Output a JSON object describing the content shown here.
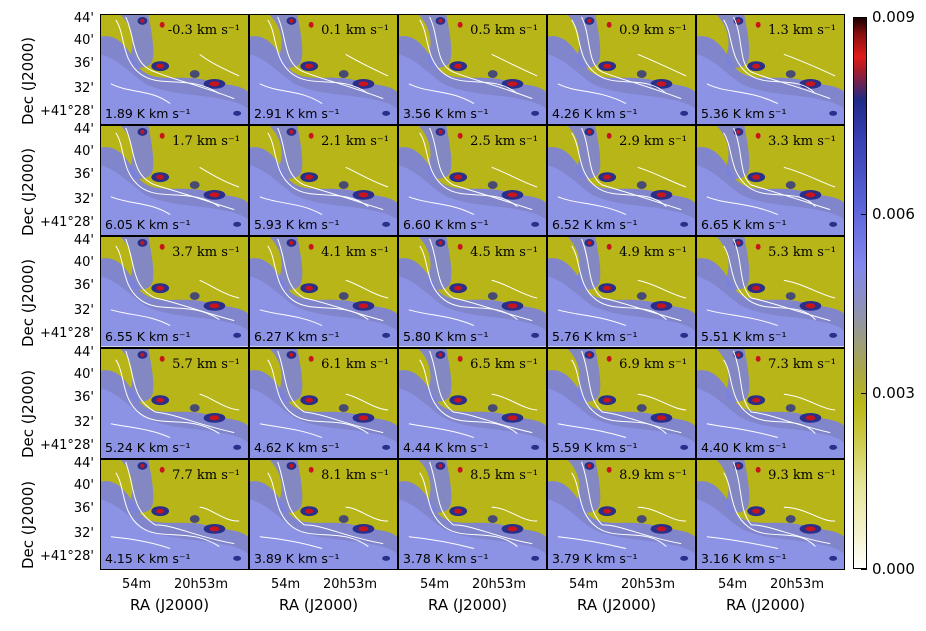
{
  "panels": [
    {
      "velocity": "-0.3 km s⁻¹",
      "integrated": "1.89 K km s⁻¹"
    },
    {
      "velocity": "0.1 km s⁻¹",
      "integrated": "2.91 K km s⁻¹"
    },
    {
      "velocity": "0.5 km s⁻¹",
      "integrated": "3.56 K km s⁻¹"
    },
    {
      "velocity": "0.9 km s⁻¹",
      "integrated": "4.26 K km s⁻¹"
    },
    {
      "velocity": "1.3 km s⁻¹",
      "integrated": "5.36 K km s⁻¹"
    },
    {
      "velocity": "1.7 km s⁻¹",
      "integrated": "6.05 K km s⁻¹"
    },
    {
      "velocity": "2.1 km s⁻¹",
      "integrated": "5.93 K km s⁻¹"
    },
    {
      "velocity": "2.5 km s⁻¹",
      "integrated": "6.60 K km s⁻¹"
    },
    {
      "velocity": "2.9 km s⁻¹",
      "integrated": "6.52 K km s⁻¹"
    },
    {
      "velocity": "3.3 km s⁻¹",
      "integrated": "6.65 K km s⁻¹"
    },
    {
      "velocity": "3.7 km s⁻¹",
      "integrated": "6.55 K km s⁻¹"
    },
    {
      "velocity": "4.1 km s⁻¹",
      "integrated": "6.27 K km s⁻¹"
    },
    {
      "velocity": "4.5 km s⁻¹",
      "integrated": "5.80 K km s⁻¹"
    },
    {
      "velocity": "4.9 km s⁻¹",
      "integrated": "5.76 K km s⁻¹"
    },
    {
      "velocity": "5.3 km s⁻¹",
      "integrated": "5.51 K km s⁻¹"
    },
    {
      "velocity": "5.7 km s⁻¹",
      "integrated": "5.24 K km s⁻¹"
    },
    {
      "velocity": "6.1 km s⁻¹",
      "integrated": "4.62 K km s⁻¹"
    },
    {
      "velocity": "6.5 km s⁻¹",
      "integrated": "4.44 K km s⁻¹"
    },
    {
      "velocity": "6.9 km s⁻¹",
      "integrated": "5.59 K km s⁻¹"
    },
    {
      "velocity": "7.3 km s⁻¹",
      "integrated": "4.40 K km s⁻¹"
    },
    {
      "velocity": "7.7 km s⁻¹",
      "integrated": "4.15 K km s⁻¹"
    },
    {
      "velocity": "8.1 km s⁻¹",
      "integrated": "3.89 K km s⁻¹"
    },
    {
      "velocity": "8.5 km s⁻¹",
      "integrated": "3.78 K km s⁻¹"
    },
    {
      "velocity": "8.9 km s⁻¹",
      "integrated": "3.79 K km s⁻¹"
    },
    {
      "velocity": "9.3 km s⁻¹",
      "integrated": "3.16 K km s⁻¹"
    }
  ],
  "axes": {
    "y_label": "Dec (J2000)",
    "x_label": "RA (J2000)",
    "y_ticks": [
      "44'",
      "40'",
      "36'",
      "32'",
      "+41°28'"
    ],
    "x_ticks": [
      "54m",
      "20h53m"
    ]
  },
  "colorbar": {
    "ticks": [
      "0.009",
      "0.006",
      "0.003",
      "0.000"
    ],
    "colors": {
      "low": "#ffffff",
      "mid_low": "#b8b819",
      "mid": "#8287ee",
      "high": "#1f2b86",
      "peak": "#e01b1b",
      "max": "#1a0000"
    }
  },
  "colors": {
    "background_map": "#b8b519",
    "cloud": "#7a80e0",
    "core": "#2a2f8a",
    "peak": "#c8141c",
    "contour": "#ffffff"
  }
}
